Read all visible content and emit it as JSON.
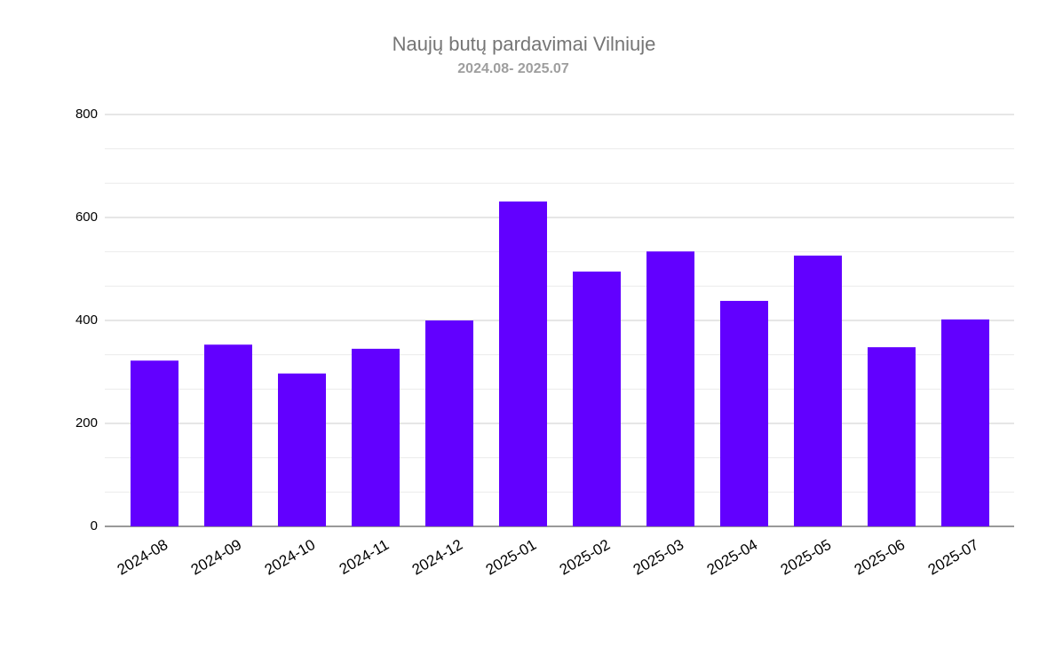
{
  "chart_data": {
    "type": "bar",
    "title": "Naujų butų pardavimai Vilniuje",
    "subtitle": "2024.08- 2025.07",
    "categories": [
      "2024-08",
      "2024-09",
      "2024-10",
      "2024-11",
      "2024-12",
      "2025-01",
      "2025-02",
      "2025-03",
      "2025-04",
      "2025-05",
      "2025-06",
      "2025-07"
    ],
    "values": [
      322,
      353,
      297,
      345,
      400,
      631,
      495,
      534,
      438,
      526,
      348,
      402
    ],
    "color": "#6200ff",
    "ylim": [
      0,
      800
    ],
    "yticks": [
      0,
      200,
      400,
      600,
      800
    ],
    "grid": true
  }
}
